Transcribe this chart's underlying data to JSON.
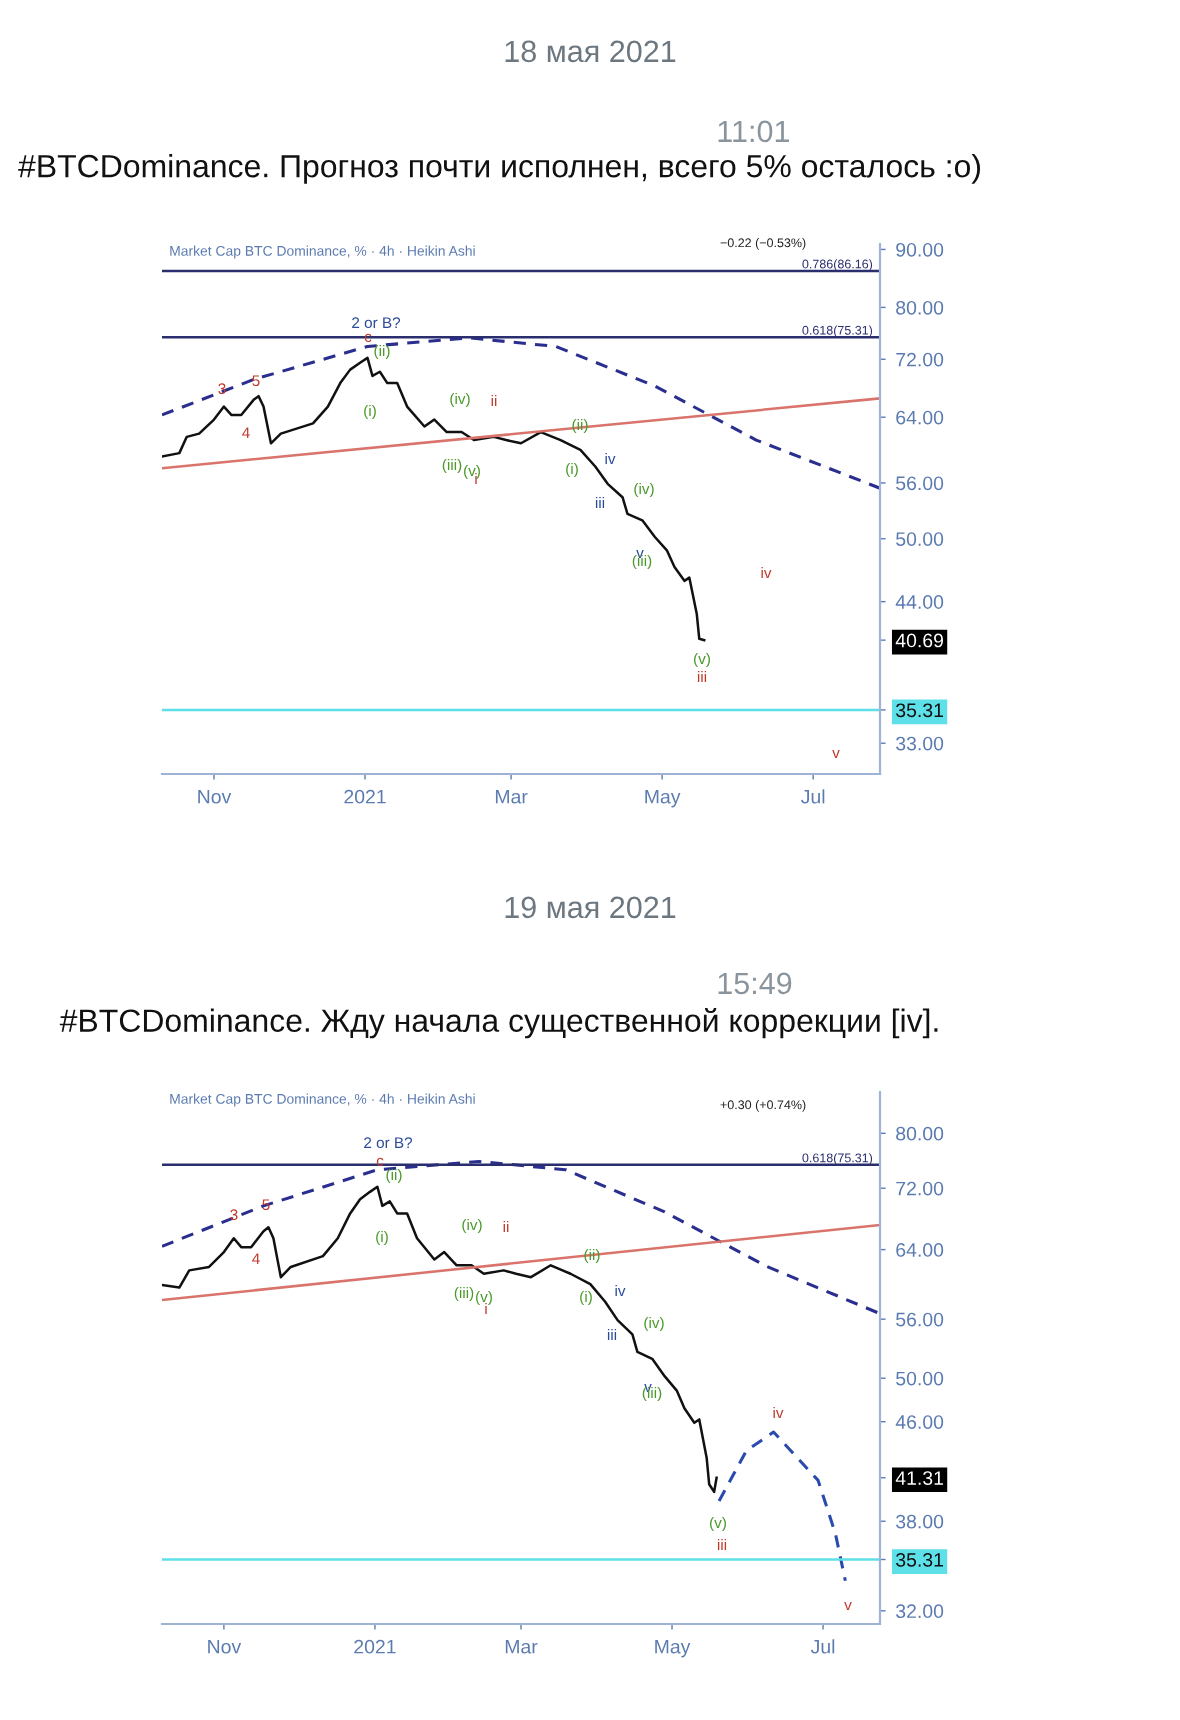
{
  "chart_data": [
    {
      "type": "line",
      "title": "#BTCDominance. Прогноз почти исполнен, всего 5% осталось :o)",
      "subtitle": "Market Cap BTC Dominance, % · 4h · Heikin Ashi",
      "annotations": [
        "18 мая 2021",
        "11:01",
        "−0.22 (−0.53%)",
        "2 or B?",
        "c",
        "(ii)",
        "(i)",
        "3",
        "5",
        "4",
        "(iv)",
        "ii",
        "(iii)",
        "(v)",
        "i",
        "(ii)",
        "(i)",
        "iv",
        "iii",
        "(iv)",
        "v",
        "(iii)",
        "(v)",
        "iii",
        "iv",
        "v"
      ],
      "xlim": [
        "2020-10-11",
        "2021-07-28"
      ],
      "xticks": [
        {
          "value": "2020-11-01",
          "label": "Nov"
        },
        {
          "value": "2021-01-01",
          "label": "2021"
        },
        {
          "value": "2021-03-01",
          "label": "Mar"
        },
        {
          "value": "2021-05-01",
          "label": "May"
        },
        {
          "value": "2021-07-01",
          "label": "Jul"
        }
      ],
      "log": true,
      "ylim": [
        31,
        91
      ],
      "yticks": [
        {
          "value": 90,
          "label": "90.00"
        },
        {
          "value": 80,
          "label": "80.00"
        },
        {
          "value": 72,
          "label": "72.00"
        },
        {
          "value": 64,
          "label": "64.00"
        },
        {
          "value": 56,
          "label": "56.00"
        },
        {
          "value": 50,
          "label": "50.00"
        },
        {
          "value": 44,
          "label": "44.00"
        },
        {
          "value": 40.69,
          "label": "40.69"
        },
        {
          "value": 35.31,
          "label": "35.31"
        },
        {
          "value": 33,
          "label": "33.00"
        }
      ],
      "ref_lines": [
        {
          "axis": "y",
          "value": 86.16,
          "label": "0.786(86.16)",
          "color": "#2a2e6e"
        },
        {
          "axis": "y",
          "value": 75.31,
          "label": "0.618(75.31)",
          "color": "#2a2e6e"
        },
        {
          "axis": "y",
          "value": 35.31,
          "color": "#5ee0e8"
        }
      ],
      "series": [
        {
          "color": "#111111",
          "line_style": "solid",
          "x": [
            "2020-10-11",
            "2020-10-18",
            "2020-10-21",
            "2020-10-26",
            "2020-11-01",
            "2020-11-05",
            "2020-11-08",
            "2020-11-12",
            "2020-11-17",
            "2020-11-19",
            "2020-11-21",
            "2020-11-24",
            "2020-11-28",
            "2020-12-11",
            "2020-12-17",
            "2020-12-22",
            "2020-12-26",
            "2020-12-30",
            "2021-01-02",
            "2021-01-04",
            "2021-01-07",
            "2021-01-10",
            "2021-01-14",
            "2021-01-18",
            "2021-01-25",
            "2021-01-29",
            "2021-02-03",
            "2021-02-09",
            "2021-02-14",
            "2021-02-22",
            "2021-02-27",
            "2021-03-05",
            "2021-03-13",
            "2021-03-21",
            "2021-03-29",
            "2021-04-04",
            "2021-04-09",
            "2021-04-15",
            "2021-04-17",
            "2021-04-23",
            "2021-04-28",
            "2021-05-03",
            "2021-05-06",
            "2021-05-10",
            "2021-05-12",
            "2021-05-15",
            "2021-05-16",
            "2021-05-18"
          ],
          "values": [
            59.1,
            59.5,
            61.5,
            61.9,
            63.7,
            65.4,
            64.3,
            64.3,
            66.3,
            66.8,
            65.4,
            60.7,
            61.9,
            63.2,
            65.4,
            68.6,
            70.5,
            71.5,
            72.2,
            69.6,
            70.2,
            68.6,
            68.6,
            65.4,
            62.8,
            63.7,
            62.1,
            62.1,
            61.1,
            61.5,
            61.1,
            60.7,
            62.1,
            61.1,
            59.9,
            57.9,
            55.9,
            54.4,
            52.6,
            51.9,
            50.2,
            48.8,
            47.2,
            45.9,
            46.2,
            42.9,
            40.8,
            40.69
          ]
        },
        {
          "color": "#2a2e8e",
          "line_style": "dashed",
          "x": [
            "2020-10-11",
            "2020-11-17",
            "2021-01-02",
            "2021-02-12",
            "2021-03-19",
            "2021-04-28",
            "2021-06-08",
            "2021-07-28"
          ],
          "values": [
            64.3,
            69.1,
            73.9,
            75.2,
            73.9,
            68.2,
            61.1,
            55.4
          ]
        },
        {
          "color": "#d9736b",
          "line_style": "solid",
          "x": [
            "2020-10-11",
            "2021-07-28"
          ],
          "values": [
            57.7,
            66.5
          ]
        }
      ]
    },
    {
      "type": "line",
      "title": "#BTCDominance. Жду начала существенной коррекции [iv].",
      "subtitle": "Market Cap BTC Dominance, % · 4h · Heikin Ashi",
      "annotations": [
        "19 мая 2021",
        "15:49",
        "+0.30 (+0.74%)",
        "2 or B?",
        "c",
        "(ii)",
        "(i)",
        "3",
        "5",
        "4",
        "(iv)",
        "ii",
        "(iii)",
        "(v)",
        "i",
        "(ii)",
        "(i)",
        "iv",
        "iii",
        "(iv)",
        "v",
        "(iii)",
        "(v)",
        "iii",
        "iv",
        "v"
      ],
      "xlim": [
        "2020-10-07",
        "2021-07-24"
      ],
      "xticks": [
        {
          "value": "2020-11-01",
          "label": "Nov"
        },
        {
          "value": "2021-01-01",
          "label": "2021"
        },
        {
          "value": "2021-03-01",
          "label": "Mar"
        },
        {
          "value": "2021-05-01",
          "label": "May"
        },
        {
          "value": "2021-07-01",
          "label": "Jul"
        }
      ],
      "log": true,
      "ylim": [
        31.2,
        86.6
      ],
      "yticks": [
        {
          "value": 80,
          "label": "80.00"
        },
        {
          "value": 72,
          "label": "72.00"
        },
        {
          "value": 64,
          "label": "64.00"
        },
        {
          "value": 56,
          "label": "56.00"
        },
        {
          "value": 50,
          "label": "50.00"
        },
        {
          "value": 46,
          "label": "46.00"
        },
        {
          "value": 41.31,
          "label": "41.31"
        },
        {
          "value": 38,
          "label": "38.00"
        },
        {
          "value": 35.31,
          "label": "35.31"
        },
        {
          "value": 32,
          "label": "32.00"
        }
      ],
      "ref_lines": [
        {
          "axis": "y",
          "value": 75.31,
          "label": "0.618(75.31)",
          "color": "#2a2e6e"
        },
        {
          "axis": "y",
          "value": 35.31,
          "color": "#5ee0e8"
        }
      ],
      "series": [
        {
          "color": "#111111",
          "line_style": "solid",
          "x": [
            "2020-10-07",
            "2020-10-14",
            "2020-10-18",
            "2020-10-26",
            "2020-11-01",
            "2020-11-05",
            "2020-11-08",
            "2020-11-12",
            "2020-11-17",
            "2020-11-19",
            "2020-11-21",
            "2020-11-24",
            "2020-11-28",
            "2020-12-11",
            "2020-12-17",
            "2020-12-22",
            "2020-12-26",
            "2020-12-30",
            "2021-01-02",
            "2021-01-04",
            "2021-01-07",
            "2021-01-10",
            "2021-01-14",
            "2021-01-18",
            "2021-01-25",
            "2021-01-29",
            "2021-02-03",
            "2021-02-09",
            "2021-02-14",
            "2021-02-22",
            "2021-02-27",
            "2021-03-05",
            "2021-03-13",
            "2021-03-21",
            "2021-03-29",
            "2021-04-04",
            "2021-04-09",
            "2021-04-15",
            "2021-04-17",
            "2021-04-23",
            "2021-04-28",
            "2021-05-03",
            "2021-05-06",
            "2021-05-10",
            "2021-05-12",
            "2021-05-15",
            "2021-05-16",
            "2021-05-18",
            "2021-05-19"
          ],
          "values": [
            59.8,
            59.5,
            61.5,
            61.9,
            63.7,
            65.4,
            64.3,
            64.3,
            66.3,
            66.8,
            65.4,
            60.7,
            61.9,
            63.2,
            65.4,
            68.6,
            70.5,
            71.5,
            72.2,
            69.6,
            70.2,
            68.6,
            68.6,
            65.4,
            62.8,
            63.7,
            62.1,
            62.1,
            61.1,
            61.5,
            61.1,
            60.7,
            62.1,
            61.1,
            59.9,
            57.9,
            55.9,
            54.4,
            52.6,
            51.9,
            50.2,
            48.8,
            47.2,
            45.9,
            46.2,
            42.9,
            40.8,
            40.2,
            41.31
          ]
        },
        {
          "color": "#2a2e8e",
          "line_style": "dashed",
          "x": [
            "2020-10-07",
            "2020-11-17",
            "2021-01-02",
            "2021-02-12",
            "2021-03-19",
            "2021-04-28",
            "2021-06-08",
            "2021-07-24"
          ],
          "values": [
            64.4,
            69.6,
            74.6,
            75.8,
            74.6,
            68.8,
            62.0,
            56.6
          ]
        },
        {
          "color": "#2a4aae",
          "line_style": "dashed",
          "x": [
            "2021-05-20",
            "2021-05-31",
            "2021-06-11",
            "2021-06-29",
            "2021-07-06",
            "2021-07-10"
          ],
          "values": [
            39.5,
            43.5,
            45.1,
            41.1,
            37.1,
            33.9
          ]
        },
        {
          "color": "#d9736b",
          "line_style": "solid",
          "x": [
            "2020-10-07",
            "2021-07-24"
          ],
          "values": [
            58.1,
            67.1
          ]
        }
      ]
    }
  ]
}
